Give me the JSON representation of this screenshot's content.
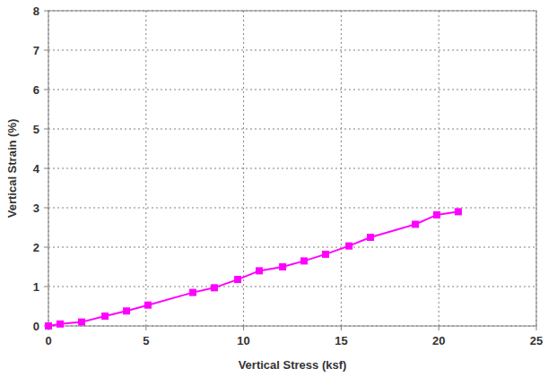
{
  "chart_data": {
    "type": "line",
    "x_label": "Vertical Stress (ksf)",
    "y_label": "Vertical Strain (%)",
    "x": [
      0,
      0.6,
      1.7,
      2.9,
      4.0,
      5.1,
      7.4,
      8.5,
      9.7,
      10.8,
      12.0,
      13.1,
      14.2,
      15.4,
      16.5,
      18.8,
      19.9,
      21.0
    ],
    "values": [
      0,
      0.05,
      0.1,
      0.25,
      0.38,
      0.53,
      0.85,
      0.97,
      1.18,
      1.4,
      1.5,
      1.65,
      1.82,
      2.03,
      2.25,
      2.58,
      2.82,
      2.9
    ],
    "color": "#ff00ff",
    "marker": "square",
    "line_style": "solid",
    "xlim": [
      0,
      25
    ],
    "xticks": [
      0,
      5,
      10,
      15,
      20,
      25
    ],
    "ylim": [
      0,
      8
    ],
    "yticks": [
      0,
      1,
      2,
      3,
      4,
      5,
      6,
      7,
      8
    ],
    "grid": true
  }
}
